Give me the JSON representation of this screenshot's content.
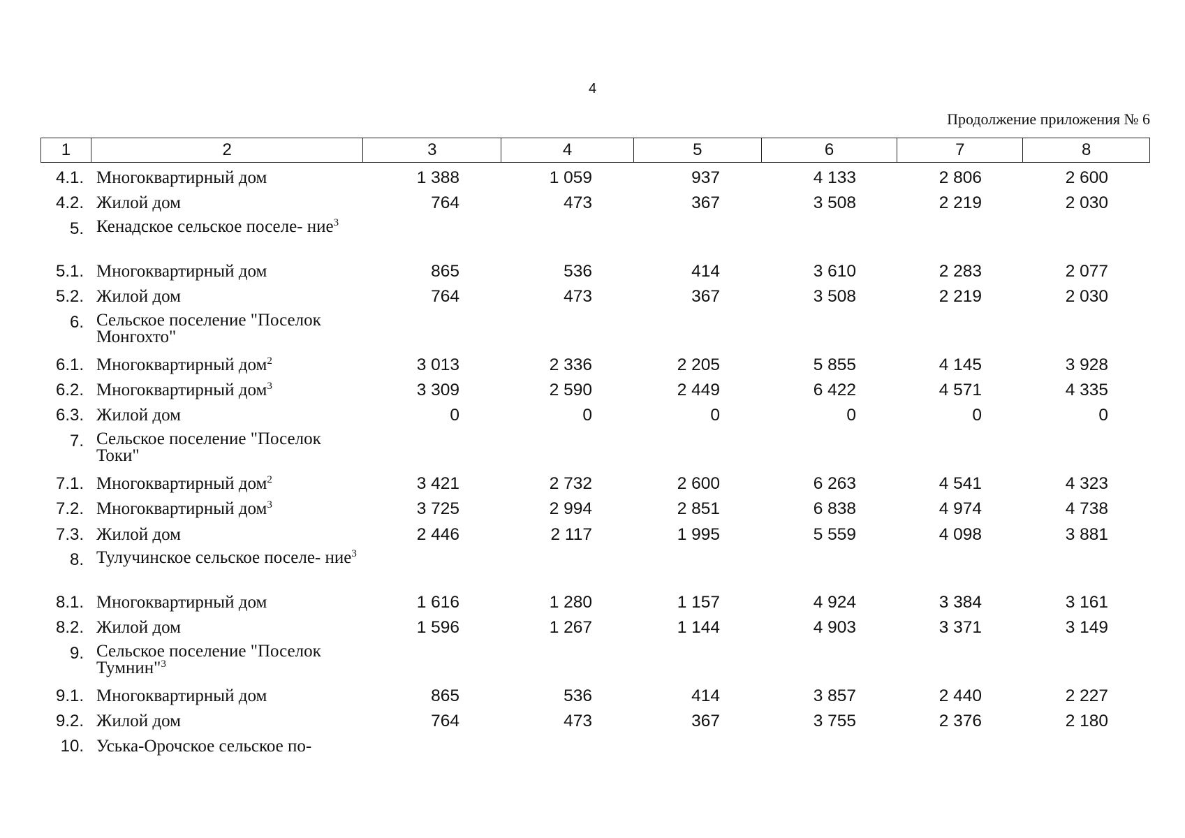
{
  "page_number": "4",
  "continuation": "Продолжение приложения № 6",
  "header": [
    "1",
    "2",
    "3",
    "4",
    "5",
    "6",
    "7",
    "8"
  ],
  "rows": [
    {
      "num": "4.1.",
      "name": "Многоквартирный дом",
      "sup": "",
      "values": [
        "1 388",
        "1 059",
        "937",
        "4 133",
        "2 806",
        "2 600"
      ]
    },
    {
      "num": "4.2.",
      "name": "Жилой дом",
      "sup": "",
      "values": [
        "764",
        "473",
        "367",
        "3 508",
        "2 219",
        "2 030"
      ]
    },
    {
      "num": "5.",
      "name": "Кенадское сельское поселе- ние",
      "sup": "3",
      "values": []
    },
    {
      "num": "5.1.",
      "name": "Многоквартирный дом",
      "sup": "",
      "values": [
        "865",
        "536",
        "414",
        "3 610",
        "2 283",
        "2 077"
      ]
    },
    {
      "num": "5.2.",
      "name": "Жилой дом",
      "sup": "",
      "values": [
        "764",
        "473",
        "367",
        "3 508",
        "2 219",
        "2 030"
      ]
    },
    {
      "num": "6.",
      "name": "Сельское поселение \"Поселок Монгохто\"",
      "sup": "",
      "values": []
    },
    {
      "num": "6.1.",
      "name": "Многоквартирный дом",
      "sup": "2",
      "values": [
        "3 013",
        "2 336",
        "2 205",
        "5 855",
        "4 145",
        "3 928"
      ]
    },
    {
      "num": "6.2.",
      "name": "Многоквартирный дом",
      "sup": "3",
      "values": [
        "3 309",
        "2 590",
        "2 449",
        "6 422",
        "4 571",
        "4 335"
      ]
    },
    {
      "num": "6.3.",
      "name": "Жилой дом",
      "sup": "",
      "values": [
        "0",
        "0",
        "0",
        "0",
        "0",
        "0"
      ]
    },
    {
      "num": "7.",
      "name": "Сельское поселение \"Поселок Токи\"",
      "sup": "",
      "values": []
    },
    {
      "num": "7.1.",
      "name": "Многоквартирный дом",
      "sup": "2",
      "values": [
        "3 421",
        "2 732",
        "2 600",
        "6 263",
        "4 541",
        "4 323"
      ]
    },
    {
      "num": "7.2.",
      "name": "Многоквартирный дом",
      "sup": "3",
      "values": [
        "3 725",
        "2 994",
        "2 851",
        "6 838",
        "4 974",
        "4 738"
      ]
    },
    {
      "num": "7.3.",
      "name": "Жилой дом",
      "sup": "",
      "values": [
        "2 446",
        "2 117",
        "1 995",
        "5 559",
        "4 098",
        "3 881"
      ]
    },
    {
      "num": "8.",
      "name": "Тулучинское сельское поселе- ние",
      "sup": "3",
      "values": []
    },
    {
      "num": "8.1.",
      "name": "Многоквартирный дом",
      "sup": "",
      "values": [
        "1 616",
        "1 280",
        "1 157",
        "4 924",
        "3 384",
        "3 161"
      ]
    },
    {
      "num": "8.2.",
      "name": "Жилой дом",
      "sup": "",
      "values": [
        "1 596",
        "1 267",
        "1 144",
        "4 903",
        "3 371",
        "3 149"
      ]
    },
    {
      "num": "9.",
      "name": "Сельское поселение \"Поселок Тумнин\"",
      "sup": "3",
      "values": []
    },
    {
      "num": "9.1.",
      "name": "Многоквартирный дом",
      "sup": "",
      "values": [
        "865",
        "536",
        "414",
        "3 857",
        "2 440",
        "2 227"
      ]
    },
    {
      "num": "9.2.",
      "name": "Жилой дом",
      "sup": "",
      "values": [
        "764",
        "473",
        "367",
        "3 755",
        "2 376",
        "2 180"
      ]
    },
    {
      "num": "10.",
      "name": "Уська-Орочское сельское по-",
      "sup": "",
      "values": []
    }
  ]
}
